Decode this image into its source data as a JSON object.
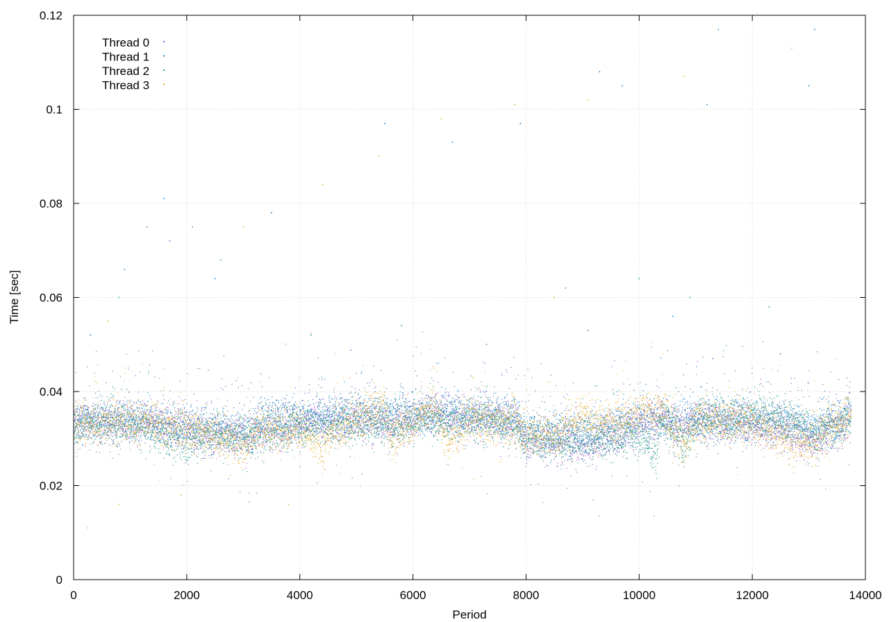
{
  "chart_data": {
    "type": "scatter",
    "title": "",
    "xlabel": "Period",
    "ylabel": "Time [sec]",
    "xlim": [
      0,
      14000
    ],
    "ylim": [
      0,
      0.12
    ],
    "x_ticks": [
      0,
      2000,
      4000,
      6000,
      8000,
      10000,
      12000,
      14000
    ],
    "y_ticks": [
      0,
      0.02,
      0.04,
      0.06,
      0.08,
      0.1,
      0.12
    ],
    "x_tick_labels": [
      "0",
      "2000",
      "4000",
      "6000",
      "8000",
      "10000",
      "12000",
      "14000"
    ],
    "y_tick_labels": [
      "0",
      "0.02",
      "0.04",
      "0.06",
      "0.08",
      "0.1",
      "0.12"
    ],
    "grid": true,
    "legend_position": "top-left",
    "x_max_point": 13750,
    "series": [
      {
        "name": "Thread 0",
        "color": "#9a5cc8",
        "baseline": [
          [
            0,
            0.0335
          ],
          [
            1000,
            0.0335
          ],
          [
            2000,
            0.032
          ],
          [
            2400,
            0.031
          ],
          [
            3200,
            0.031
          ],
          [
            4000,
            0.0335
          ],
          [
            5000,
            0.034
          ],
          [
            5600,
            0.033
          ],
          [
            6400,
            0.036
          ],
          [
            7000,
            0.034
          ],
          [
            7800,
            0.034
          ],
          [
            8000,
            0.0295
          ],
          [
            9200,
            0.029
          ],
          [
            9500,
            0.031
          ],
          [
            10000,
            0.033
          ],
          [
            10400,
            0.034
          ],
          [
            10800,
            0.033
          ],
          [
            11000,
            0.034
          ],
          [
            12000,
            0.033
          ],
          [
            12800,
            0.031
          ],
          [
            13100,
            0.0285
          ],
          [
            13400,
            0.032
          ],
          [
            13750,
            0.034
          ]
        ],
        "outliers": [
          [
            1300,
            0.075
          ],
          [
            1700,
            0.072
          ],
          [
            2100,
            0.075
          ],
          [
            4900,
            0.0488
          ],
          [
            7300,
            0.05
          ],
          [
            9100,
            0.053
          ],
          [
            11300,
            0.047
          ],
          [
            12500,
            0.048
          ]
        ]
      },
      {
        "name": "Thread 1",
        "color": "#1a7fc4",
        "baseline": [
          [
            0,
            0.0335
          ],
          [
            1000,
            0.034
          ],
          [
            2000,
            0.033
          ],
          [
            2400,
            0.032
          ],
          [
            3200,
            0.031
          ],
          [
            3300,
            0.035
          ],
          [
            4000,
            0.034
          ],
          [
            5000,
            0.035
          ],
          [
            6400,
            0.035
          ],
          [
            7000,
            0.035
          ],
          [
            7800,
            0.035
          ],
          [
            8000,
            0.031
          ],
          [
            9200,
            0.0315
          ],
          [
            10000,
            0.034
          ],
          [
            10800,
            0.034
          ],
          [
            12000,
            0.034
          ],
          [
            12800,
            0.033
          ],
          [
            13100,
            0.032
          ],
          [
            13750,
            0.0355
          ]
        ],
        "outliers": [
          [
            900,
            0.066
          ],
          [
            1600,
            0.081
          ],
          [
            2500,
            0.064
          ],
          [
            3500,
            0.078
          ],
          [
            5500,
            0.097
          ],
          [
            6700,
            0.093
          ],
          [
            7900,
            0.097
          ],
          [
            9300,
            0.108
          ],
          [
            9700,
            0.105
          ],
          [
            11200,
            0.101
          ],
          [
            11400,
            0.117
          ],
          [
            13000,
            0.105
          ],
          [
            13100,
            0.117
          ],
          [
            300,
            0.052
          ],
          [
            10600,
            0.056
          ]
        ]
      },
      {
        "name": "Thread 2",
        "color": "#2a9c8c",
        "baseline": [
          [
            0,
            0.0325
          ],
          [
            1000,
            0.0335
          ],
          [
            2000,
            0.029
          ],
          [
            2400,
            0.031
          ],
          [
            3200,
            0.0305
          ],
          [
            4000,
            0.033
          ],
          [
            5000,
            0.033
          ],
          [
            6400,
            0.034
          ],
          [
            7000,
            0.034
          ],
          [
            7800,
            0.033
          ],
          [
            8000,
            0.03
          ],
          [
            9200,
            0.029
          ],
          [
            10000,
            0.031
          ],
          [
            10300,
            0.026
          ],
          [
            10400,
            0.035
          ],
          [
            10800,
            0.028
          ],
          [
            11000,
            0.034
          ],
          [
            12000,
            0.035
          ],
          [
            12800,
            0.034
          ],
          [
            13100,
            0.031
          ],
          [
            13750,
            0.034
          ]
        ],
        "outliers": [
          [
            800,
            0.06
          ],
          [
            2600,
            0.068
          ],
          [
            4200,
            0.052
          ],
          [
            5800,
            0.054
          ],
          [
            8700,
            0.062
          ],
          [
            10000,
            0.064
          ],
          [
            10900,
            0.06
          ],
          [
            12300,
            0.058
          ]
        ]
      },
      {
        "name": "Thread 3",
        "color": "#e6b038",
        "baseline": [
          [
            0,
            0.033
          ],
          [
            1000,
            0.0335
          ],
          [
            2000,
            0.032
          ],
          [
            2400,
            0.031
          ],
          [
            3000,
            0.0285
          ],
          [
            3300,
            0.032
          ],
          [
            4000,
            0.032
          ],
          [
            4400,
            0.028
          ],
          [
            4600,
            0.032
          ],
          [
            5000,
            0.034
          ],
          [
            5500,
            0.037
          ],
          [
            5600,
            0.03
          ],
          [
            6400,
            0.037
          ],
          [
            6600,
            0.029
          ],
          [
            7000,
            0.034
          ],
          [
            7800,
            0.033
          ],
          [
            8000,
            0.031
          ],
          [
            8600,
            0.031
          ],
          [
            9000,
            0.036
          ],
          [
            9200,
            0.033
          ],
          [
            10000,
            0.035
          ],
          [
            10400,
            0.036
          ],
          [
            10800,
            0.029
          ],
          [
            11000,
            0.034
          ],
          [
            12000,
            0.0335
          ],
          [
            12800,
            0.029
          ],
          [
            13100,
            0.029
          ],
          [
            13400,
            0.033
          ],
          [
            13750,
            0.035
          ]
        ],
        "outliers": [
          [
            250,
            0.011
          ],
          [
            800,
            0.016
          ],
          [
            1900,
            0.018
          ],
          [
            3000,
            0.075
          ],
          [
            3800,
            0.016
          ],
          [
            4400,
            0.084
          ],
          [
            5400,
            0.09
          ],
          [
            6500,
            0.098
          ],
          [
            7800,
            0.101
          ],
          [
            9100,
            0.102
          ],
          [
            10800,
            0.107
          ],
          [
            12700,
            0.113
          ],
          [
            600,
            0.055
          ],
          [
            8500,
            0.06
          ]
        ]
      }
    ]
  }
}
